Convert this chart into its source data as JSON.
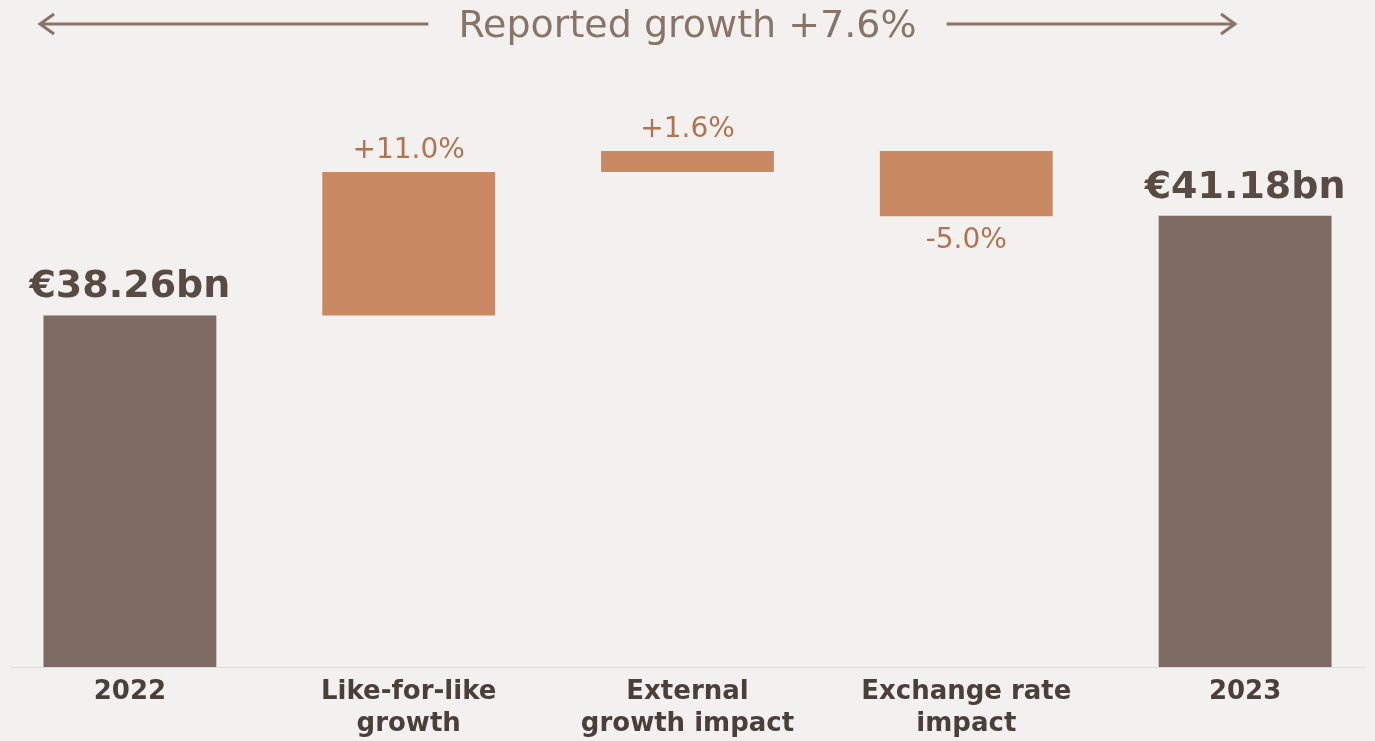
{
  "chart_data": {
    "type": "other",
    "title": "Reported growth +7.6%",
    "categories": [
      "2022",
      "Like-for-like growth",
      "External growth impact",
      "Exchange rate impact",
      "2023"
    ],
    "series": [
      {
        "color": "#7d6a62",
        "values": [
          38.26,
          null,
          null,
          null,
          41.18
        ],
        "value_labels": [
          "€38.26bn",
          null,
          null,
          null,
          "€41.18bn"
        ]
      },
      {
        "color": "#c98a63",
        "axis": "y2",
        "values": [
          null,
          11.0,
          1.6,
          -5.0,
          null
        ],
        "value_labels": [
          null,
          "+11.0%",
          "+1.6%",
          "-5.0%",
          null
        ]
      }
    ]
  }
}
